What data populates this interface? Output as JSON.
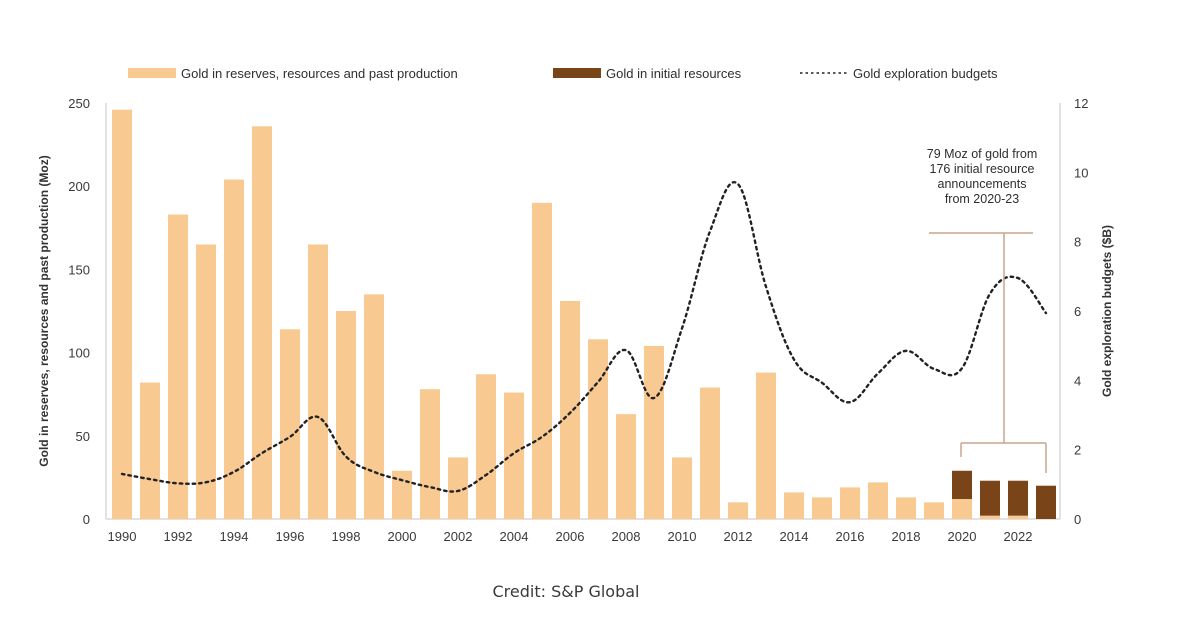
{
  "chart_data": {
    "type": "bar",
    "title": "",
    "categories": [
      "1990",
      "1991",
      "1992",
      "1993",
      "1994",
      "1995",
      "1996",
      "1997",
      "1998",
      "1999",
      "2000",
      "2001",
      "2002",
      "2003",
      "2004",
      "2005",
      "2006",
      "2007",
      "2008",
      "2009",
      "2010",
      "2011",
      "2012",
      "2013",
      "2014",
      "2015",
      "2016",
      "2017",
      "2018",
      "2019",
      "2020",
      "2021",
      "2022",
      "2023"
    ],
    "series": [
      {
        "name": "Gold in reserves, resources and past production",
        "kind": "bar-stacked",
        "axis": "left",
        "color": "#F8C991",
        "values": [
          246,
          82,
          183,
          165,
          204,
          236,
          114,
          165,
          125,
          135,
          29,
          78,
          37,
          87,
          76,
          190,
          131,
          108,
          63,
          104,
          37,
          79,
          10,
          88,
          16,
          13,
          19,
          22,
          13,
          10,
          12,
          2,
          2,
          0
        ]
      },
      {
        "name": "Gold in initial resources",
        "kind": "bar-stacked",
        "axis": "left",
        "color": "#7A4419",
        "values": [
          0,
          0,
          0,
          0,
          0,
          0,
          0,
          0,
          0,
          0,
          0,
          0,
          0,
          0,
          0,
          0,
          0,
          0,
          0,
          0,
          0,
          0,
          0,
          0,
          0,
          0,
          0,
          0,
          0,
          0,
          17,
          21,
          21,
          20
        ]
      },
      {
        "name": "Gold exploration budgets",
        "kind": "line-dotted",
        "axis": "right",
        "color": "#222222",
        "values": [
          1.3,
          1.15,
          1.03,
          1.06,
          1.36,
          1.9,
          2.37,
          2.94,
          1.8,
          1.36,
          1.12,
          0.92,
          0.81,
          1.27,
          1.9,
          2.37,
          3.06,
          3.95,
          4.87,
          3.49,
          5.5,
          8.3,
          9.66,
          6.7,
          4.6,
          3.93,
          3.37,
          4.2,
          4.85,
          4.33,
          4.35,
          6.5,
          6.95,
          5.94
        ]
      }
    ],
    "xlabel": "",
    "ylabel": "Gold in reserves, resources and past production (Moz)",
    "y2label": "Gold exploration budgets ($B)",
    "ylim": [
      0,
      250
    ],
    "y2lim": [
      0,
      12
    ],
    "yticks": [
      "0",
      "50",
      "100",
      "150",
      "200",
      "250"
    ],
    "y2ticks": [
      "0",
      "2",
      "4",
      "6",
      "8",
      "10",
      "12"
    ],
    "xticks": [
      "1990",
      "1992",
      "1994",
      "1996",
      "1998",
      "2000",
      "2002",
      "2004",
      "2006",
      "2008",
      "2010",
      "2012",
      "2014",
      "2016",
      "2018",
      "2020",
      "2022"
    ],
    "grid": false,
    "legend_position": "top",
    "legend": [
      {
        "label": "Gold in reserves, resources and past production",
        "symbol": "swatch",
        "color": "#F8C991"
      },
      {
        "label": "Gold in initial resources",
        "symbol": "swatch",
        "color": "#7A4419"
      },
      {
        "label": "Gold exploration budgets",
        "symbol": "dotted-line",
        "color": "#222222"
      }
    ],
    "annotation": {
      "lines": [
        "79 Moz of gold from",
        "176 initial resource",
        "announcements",
        "from 2020-23"
      ],
      "bracket_range": [
        "2020",
        "2023"
      ],
      "color": "#C9A58C"
    }
  },
  "credit": "Credit: S&P Global"
}
